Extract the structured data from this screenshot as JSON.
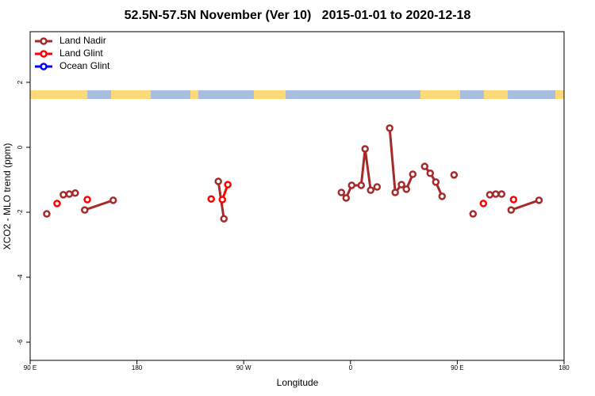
{
  "chart_data": {
    "type": "line",
    "title": "52.5N-57.5N November (Ver 10)   2015-01-01 to 2020-12-18",
    "x_label": "Longitude",
    "y_label": "XCO2 - MLO trend (ppm)",
    "xlim": [
      90,
      540
    ],
    "ylim": [
      -6.56,
      3.56
    ],
    "xticks": [
      {
        "value": 90,
        "label": "90 E"
      },
      180,
      {
        "value": 270,
        "label": "90 W"
      },
      {
        "value": 360,
        "label": "0"
      },
      {
        "value": 450,
        "label": "90 E"
      },
      {
        "value": 540,
        "label": "180"
      }
    ],
    "yticks": [
      -6,
      -4,
      -2,
      0,
      2
    ],
    "legend": "top-left",
    "series": [
      {
        "name": "Land Nadir",
        "color": "#a52a2a",
        "x": [
          104,
          null,
          118,
          123,
          128,
          null,
          136,
          160,
          null,
          248.6,
          253.3,
          null,
          352.3,
          356.3,
          361,
          369,
          372.3,
          377,
          382.4,
          null,
          393,
          397.7,
          403,
          407.1,
          412.5,
          null,
          422.5,
          427.2,
          431.9,
          437.2,
          null,
          447.3,
          null,
          463.3,
          null,
          477.4,
          482.4,
          487.4,
          null,
          495.4,
          518.9
        ],
        "values": [
          -2.05,
          null,
          -1.46,
          -1.44,
          -1.41,
          null,
          -1.93,
          -1.63,
          null,
          -1.05,
          -2.2,
          null,
          -1.39,
          -1.56,
          -1.17,
          -1.17,
          -0.05,
          -1.32,
          -1.22,
          null,
          0.59,
          -1.39,
          -1.15,
          -1.29,
          -0.83,
          null,
          -0.59,
          -0.8,
          -1.07,
          -1.51,
          null,
          -0.85,
          null,
          -2.05,
          null,
          -1.46,
          -1.44,
          -1.44,
          null,
          -1.93,
          -1.63
        ]
      },
      {
        "name": "Land Glint",
        "color": "#ff0000",
        "x": [
          112.7,
          null,
          138.2,
          null,
          242.6,
          null,
          252,
          256.6,
          null,
          472,
          null,
          497.4
        ],
        "values": [
          -1.73,
          null,
          -1.61,
          null,
          -1.59,
          null,
          -1.61,
          -1.15,
          null,
          -1.73,
          null,
          -1.61
        ]
      },
      {
        "name": "Ocean Glint",
        "color": "#0000ff",
        "x": [],
        "values": []
      }
    ]
  }
}
